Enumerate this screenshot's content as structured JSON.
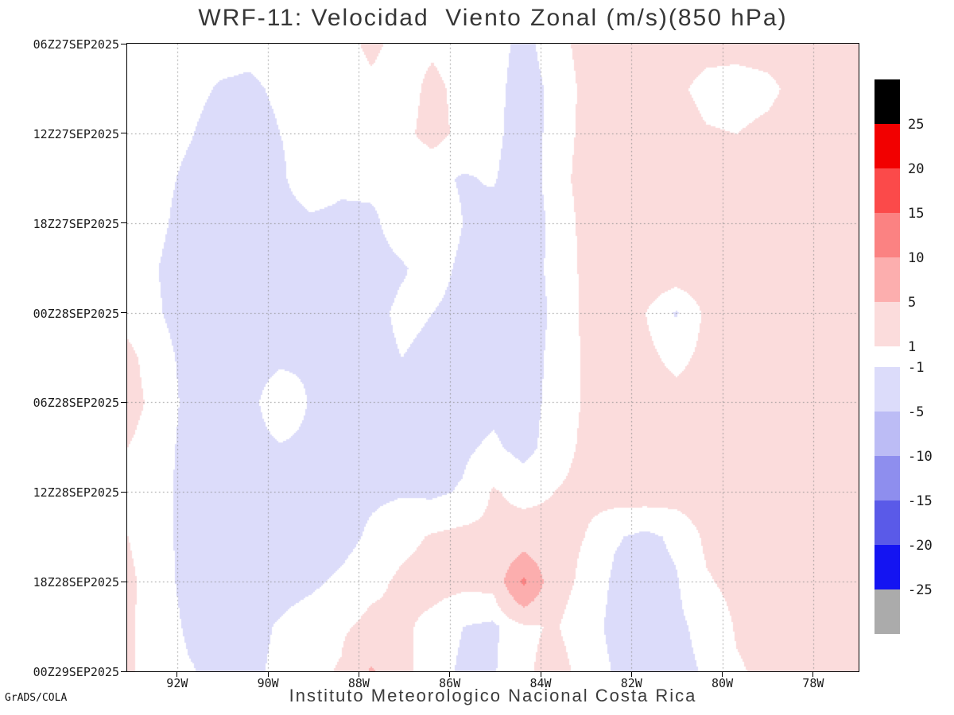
{
  "title": "WRF-11: Velocidad  Viento Zonal (m/s)(850 hPa)",
  "footer": {
    "credit": "GrADS/COLA",
    "institution": "Instituto Meteorologico Nacional Costa Rica"
  },
  "chart_data": {
    "type": "heatmap",
    "subtype": "filled-contour-hovmoller",
    "title": "WRF-11: Velocidad  Viento Zonal (m/s)(850 hPa)",
    "units": "m/s",
    "pressure_level": "850 hPa",
    "xlabel": "",
    "ylabel": "",
    "x_axis": {
      "ticks": [
        "92W",
        "90W",
        "88W",
        "86W",
        "84W",
        "82W",
        "80W",
        "78W"
      ],
      "tick_values": [
        -92,
        -90,
        -88,
        -86,
        -84,
        -82,
        -80,
        -78
      ],
      "range": [
        -93.1,
        -77.0
      ]
    },
    "y_axis": {
      "ticks": [
        "06Z27SEP2025",
        "12Z27SEP2025",
        "18Z27SEP2025",
        "00Z28SEP2025",
        "06Z28SEP2025",
        "12Z28SEP2025",
        "18Z28SEP2025",
        "00Z29SEP2025"
      ]
    },
    "gridlines": {
      "style": "dotted",
      "color": "#8f8f8f"
    },
    "levels": [
      -25,
      -20,
      -15,
      -10,
      -5,
      -1,
      1,
      5,
      10,
      15,
      20,
      25
    ],
    "level_colors": [
      "#ababab",
      "#1414f2",
      "#5a5ae8",
      "#8e8eee",
      "#bcbcf5",
      "#dcdcfa",
      "#ffffff",
      "#fbdcdc",
      "#fcaeae",
      "#fb8282",
      "#fb4a4a",
      "#f20000",
      "#000000"
    ],
    "colorbar": {
      "upper_segments": [
        {
          "color": "#000000",
          "label": "25"
        },
        {
          "color": "#f20000",
          "label": "20"
        },
        {
          "color": "#fb4a4a",
          "label": "15"
        },
        {
          "color": "#fb8282",
          "label": "10"
        },
        {
          "color": "#fcaeae",
          "label": "5"
        },
        {
          "color": "#fbdcdc",
          "label": "1"
        }
      ],
      "lower_segments": [
        {
          "color": "#dcdcfa",
          "label": "-1"
        },
        {
          "color": "#bcbcf5",
          "label": "-5"
        },
        {
          "color": "#8e8eee",
          "label": "-10"
        },
        {
          "color": "#5a5ae8",
          "label": "-15"
        },
        {
          "color": "#1414f2",
          "label": "-20"
        },
        {
          "color": "#ababab",
          "label": "-25"
        }
      ]
    },
    "grid": {
      "description": "Zonal wind (m/s); rows = time every 3h from 06Z27SEP2025 to 00Z29SEP2025 (top to bottom), cols = longitude from 93.1W to 77.0W (left to right)",
      "rows": 15,
      "cols": 25,
      "values": [
        [
          0,
          0,
          0,
          -0.2,
          -0.4,
          0,
          0,
          0.3,
          1.4,
          0.4,
          0.6,
          0,
          -0.2,
          -1.6,
          0,
          1.8,
          2.2,
          2.2,
          2.0,
          1.8,
          1.8,
          2.0,
          2.2,
          2.0,
          2.0
        ],
        [
          0,
          0,
          -0.3,
          -1.2,
          -1.4,
          -0.6,
          0,
          0,
          0.6,
          0,
          1.6,
          0.3,
          -0.3,
          -2.0,
          -0.5,
          1.5,
          2.0,
          2.0,
          1.5,
          0.3,
          0,
          0.4,
          1.8,
          2.0,
          2.0
        ],
        [
          0,
          0,
          -0.8,
          -2.0,
          -2.0,
          -1.0,
          0,
          0,
          0,
          0.4,
          1.8,
          0.4,
          -0.4,
          -2.2,
          -0.3,
          1.6,
          2.2,
          2.4,
          2.2,
          1.2,
          1.0,
          1.6,
          2.2,
          2.4,
          2.2
        ],
        [
          0,
          -0.3,
          -1.5,
          -2.5,
          -2.2,
          -1.5,
          0.8,
          -0.3,
          -0.5,
          -0.8,
          -0.5,
          -1.2,
          -0.8,
          -2.4,
          0,
          1.8,
          2.4,
          2.6,
          2.4,
          2.0,
          1.8,
          2.0,
          2.4,
          2.4,
          2.2
        ],
        [
          0,
          -0.5,
          -2.0,
          -3.0,
          -2.8,
          -2.2,
          -1.6,
          -1.8,
          -1.4,
          0,
          0.4,
          -1.0,
          -1.8,
          -2.4,
          -0.5,
          1.6,
          2.4,
          2.8,
          2.6,
          2.4,
          2.2,
          2.4,
          2.6,
          2.4,
          2.2
        ],
        [
          0,
          -1.0,
          -2.4,
          -2.8,
          -2.6,
          -2.4,
          -2.0,
          -2.2,
          -1.8,
          -1.2,
          -0.2,
          -1.4,
          -2.0,
          -2.2,
          -0.4,
          1.4,
          2.2,
          2.6,
          2.6,
          2.4,
          2.2,
          2.4,
          2.4,
          2.2,
          2.0
        ],
        [
          0.3,
          -0.8,
          -2.2,
          -2.6,
          -2.4,
          -2.2,
          -1.8,
          -2.0,
          -1.6,
          -0.6,
          -1.0,
          -1.6,
          -1.8,
          -2.4,
          -0.6,
          1.4,
          2.0,
          1.0,
          -1.2,
          1.4,
          2.0,
          2.2,
          2.2,
          2.0,
          2.0
        ],
        [
          1.5,
          0,
          -1.8,
          -2.4,
          -2.2,
          -1.6,
          -1.4,
          -1.8,
          -1.6,
          -1.0,
          -1.4,
          -1.8,
          -1.6,
          -2.2,
          -0.4,
          1.2,
          1.8,
          1.6,
          0.4,
          1.6,
          2.0,
          2.0,
          2.0,
          2.0,
          1.8
        ],
        [
          1.8,
          0.3,
          -1.6,
          -2.0,
          -1.8,
          0.8,
          -1.2,
          -1.8,
          -1.4,
          -1.2,
          -1.8,
          -2.0,
          -1.6,
          -2.0,
          -0.3,
          1.2,
          1.8,
          2.0,
          1.8,
          1.8,
          2.0,
          2.0,
          2.0,
          1.8,
          1.6
        ],
        [
          1.0,
          0,
          -1.8,
          -2.2,
          -2.0,
          -1.2,
          -1.6,
          -2.0,
          -1.6,
          -1.4,
          -1.6,
          -1.4,
          -0.6,
          -1.8,
          0,
          1.4,
          2.0,
          2.0,
          2.0,
          2.0,
          2.2,
          2.2,
          2.0,
          1.8,
          1.6
        ],
        [
          0.5,
          -0.3,
          -1.8,
          -2.2,
          -2.0,
          -1.6,
          -1.8,
          -1.8,
          -1.4,
          -1.2,
          -1.4,
          -0.8,
          1.2,
          0.4,
          1.0,
          1.6,
          2.0,
          2.2,
          2.0,
          2.2,
          2.2,
          2.2,
          2.0,
          1.8,
          1.6
        ],
        [
          1.0,
          0,
          -2.0,
          -2.4,
          -2.2,
          -2.0,
          -2.0,
          -1.8,
          -0.6,
          0.4,
          1.2,
          1.6,
          1.4,
          2.0,
          1.6,
          1.0,
          -0.8,
          -1.5,
          -0.6,
          1.4,
          2.0,
          2.0,
          1.8,
          1.6,
          1.4
        ],
        [
          1.4,
          0,
          -1.8,
          -2.2,
          -2.0,
          -1.8,
          -1.4,
          -0.6,
          0.4,
          1.4,
          1.8,
          1.6,
          1.8,
          11.0,
          1.8,
          0.6,
          -1.4,
          -1.8,
          -1.2,
          0.8,
          1.6,
          1.8,
          1.6,
          1.4,
          1.6
        ],
        [
          1.2,
          0.3,
          -1.4,
          -1.8,
          -1.6,
          -0.8,
          0,
          0.6,
          1.6,
          1.4,
          0.4,
          -1.0,
          -1.4,
          0.6,
          1.2,
          0,
          -1.6,
          -2.0,
          -1.4,
          -0.4,
          1.2,
          1.6,
          1.4,
          1.2,
          1.8
        ],
        [
          1.2,
          0.4,
          -0.8,
          -1.6,
          -1.4,
          -0.6,
          0.4,
          1.2,
          5.5,
          1.6,
          0,
          -1.4,
          -1.2,
          0.6,
          1.8,
          0.4,
          -1.2,
          -1.8,
          -1.6,
          -0.8,
          0.8,
          1.4,
          1.6,
          1.8,
          2.2
        ]
      ]
    }
  }
}
